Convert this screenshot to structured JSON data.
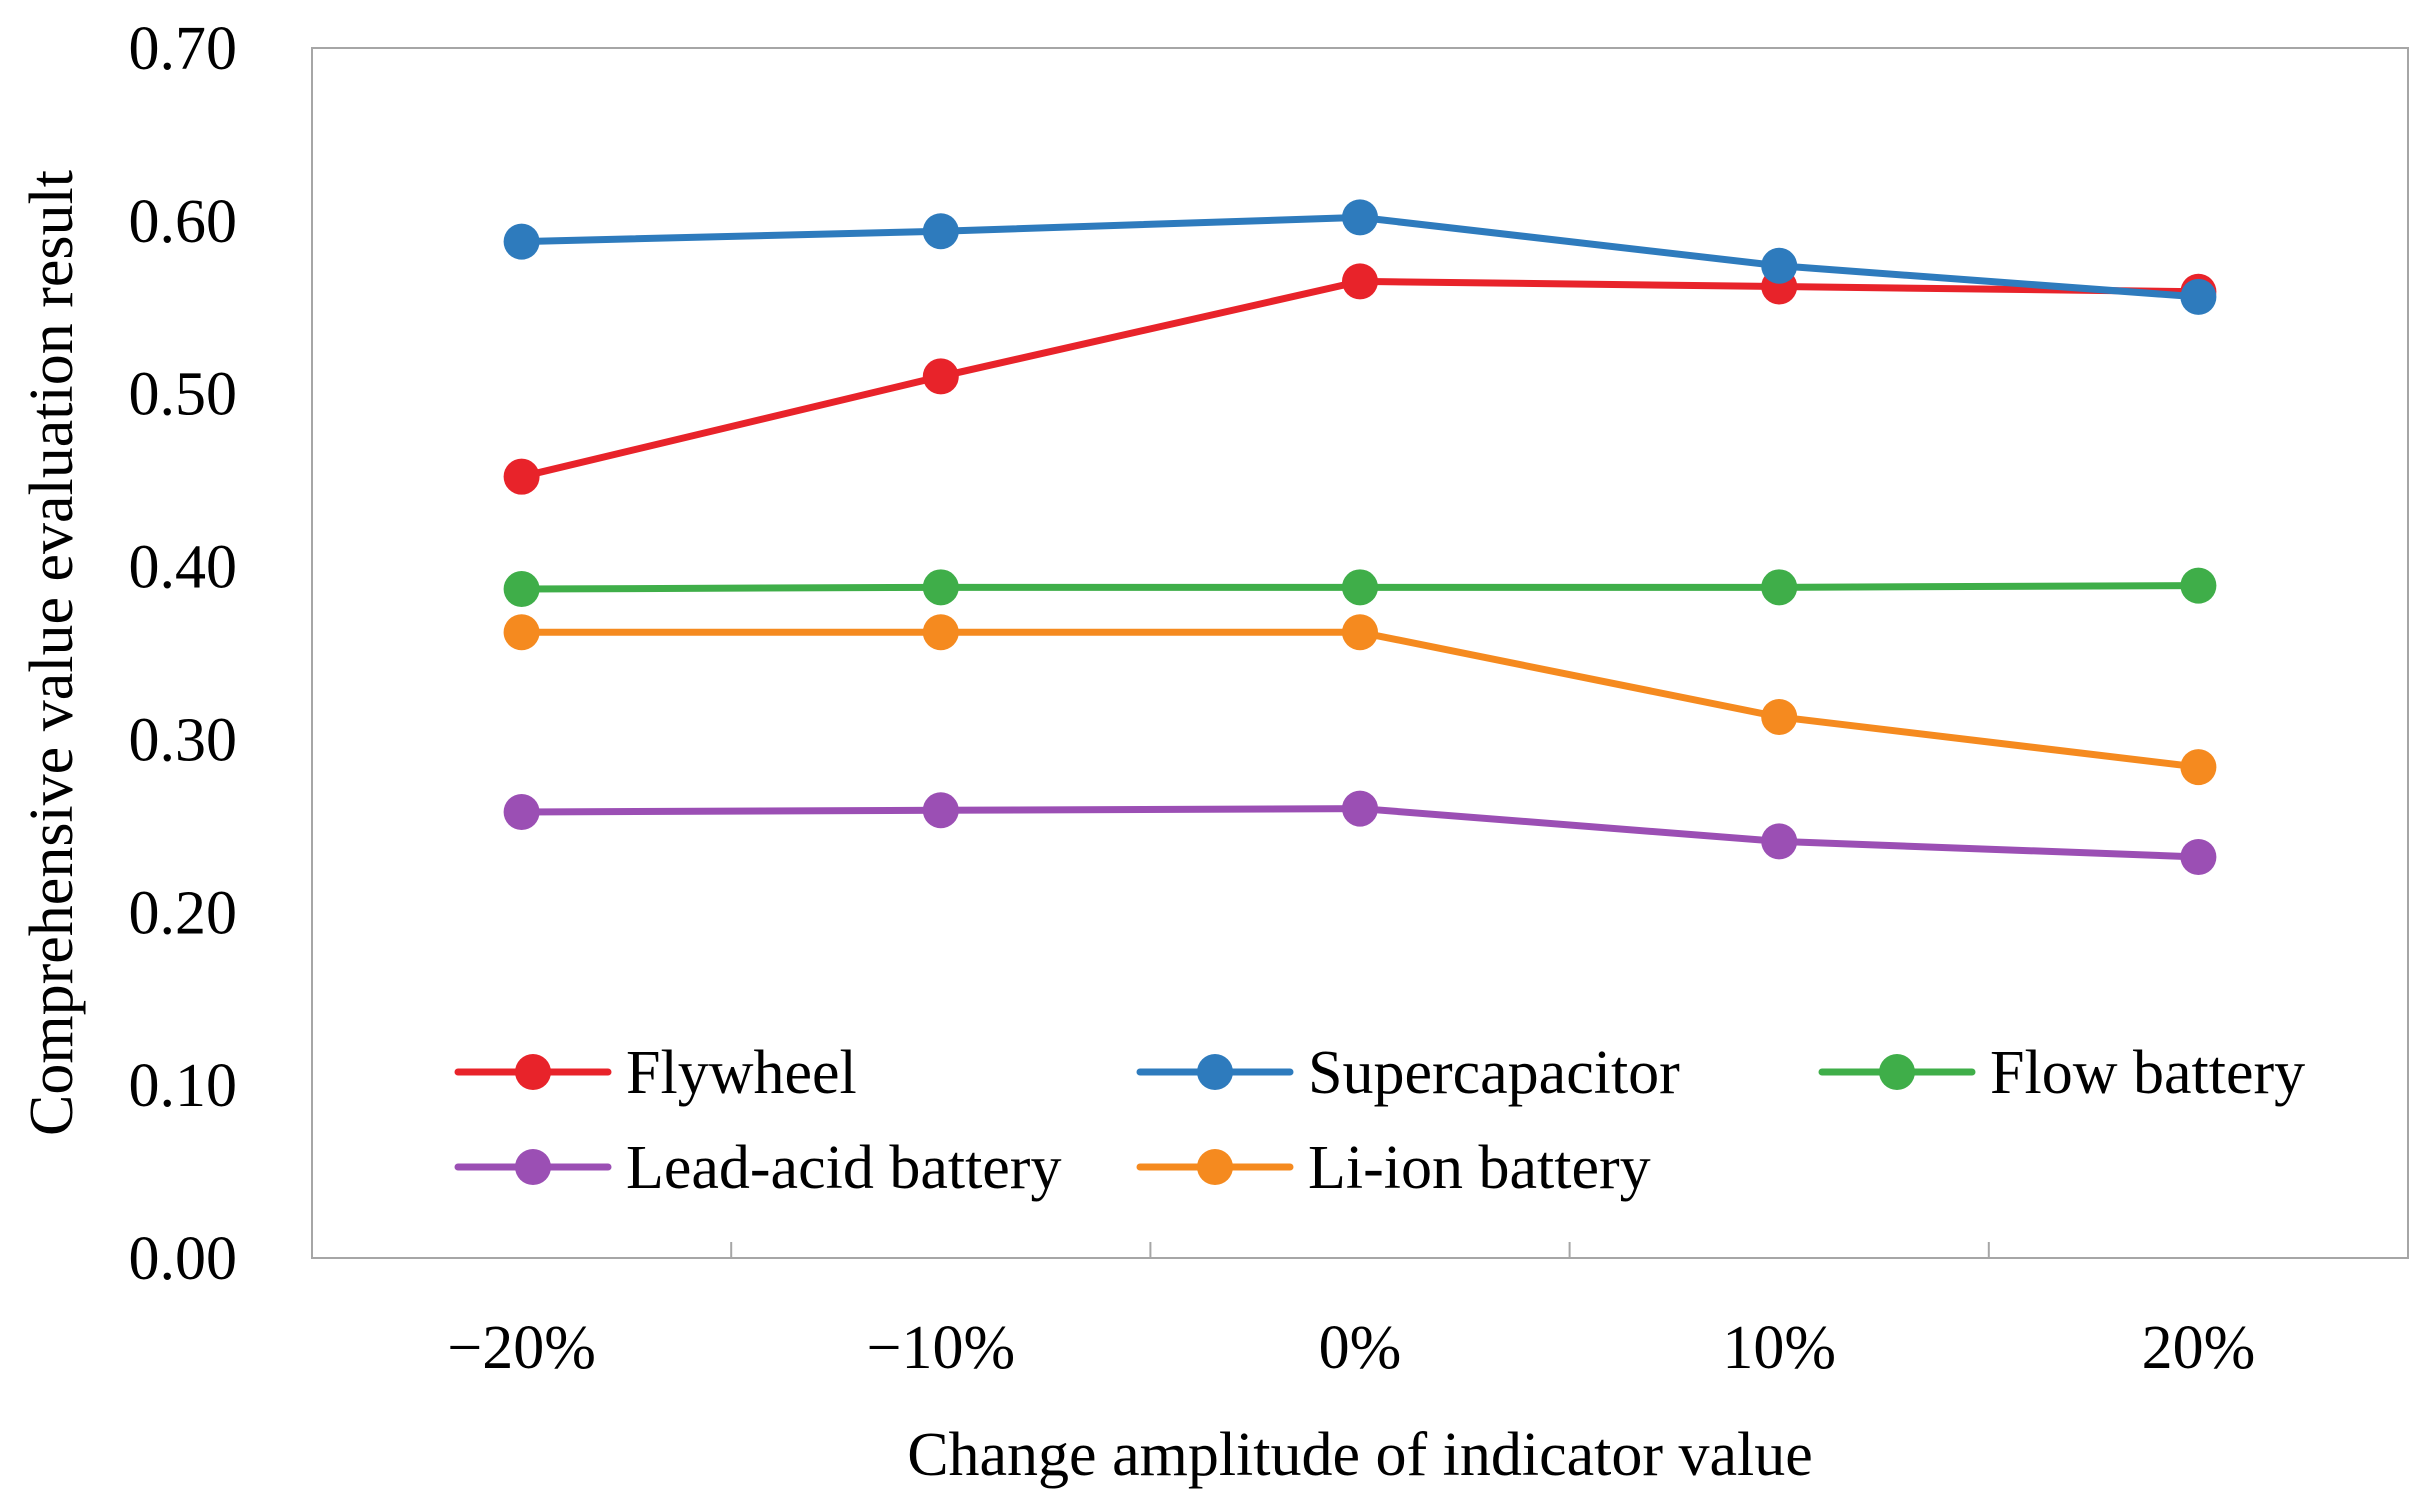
{
  "chart_data": {
    "type": "line",
    "title": "",
    "xlabel": "Change amplitude of indicator value",
    "ylabel": "Comprehensive  value  evaluation  result",
    "categories": [
      "−20%",
      "−10%",
      "0%",
      "10%",
      "20%"
    ],
    "ylim": [
      0.0,
      0.7
    ],
    "yticks": [
      "0.00",
      "0.10",
      "0.20",
      "0.30",
      "0.40",
      "0.50",
      "0.60",
      "0.70"
    ],
    "legend_position": "bottom-inside",
    "series": [
      {
        "name": "Flywheel",
        "color": "#e8232a",
        "values": [
          0.452,
          0.51,
          0.565,
          0.562,
          0.559
        ]
      },
      {
        "name": "Supercapacitor",
        "color": "#2e7bbd",
        "values": [
          0.588,
          0.594,
          0.602,
          0.574,
          0.556
        ]
      },
      {
        "name": "Flow battery",
        "color": "#3fae49",
        "values": [
          0.387,
          0.388,
          0.388,
          0.388,
          0.389
        ]
      },
      {
        "name": "Lead-acid battery",
        "color": "#9b4fb4",
        "values": [
          0.258,
          0.259,
          0.26,
          0.241,
          0.232
        ]
      },
      {
        "name": "Li-ion battery",
        "color": "#f58a1f",
        "values": [
          0.362,
          0.362,
          0.362,
          0.313,
          0.284
        ]
      }
    ]
  }
}
